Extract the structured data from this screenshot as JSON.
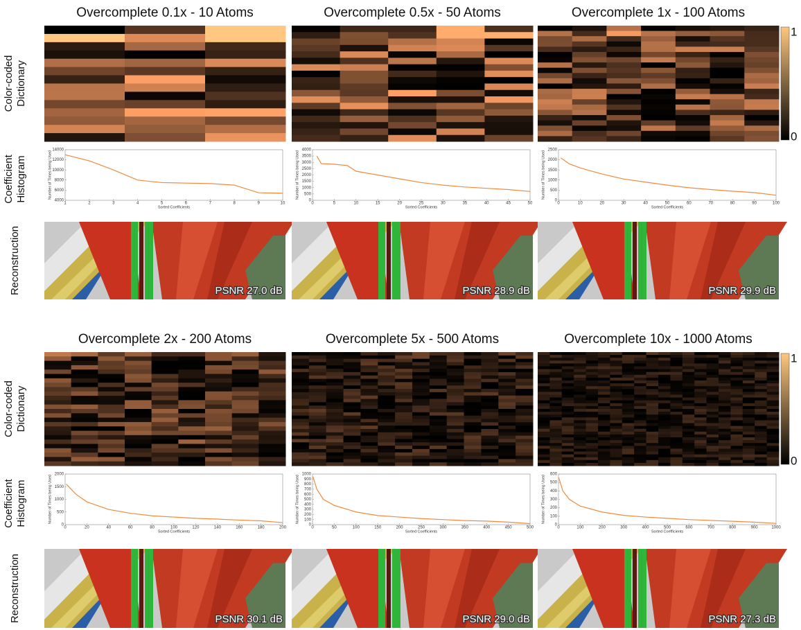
{
  "row_labels": [
    [
      "Color-coded",
      "Dictionary"
    ],
    [
      "Coefficient",
      "Histogram"
    ],
    [
      "Reconstruction"
    ]
  ],
  "colorbar": {
    "ticks": [
      0,
      1
    ]
  },
  "chart_data": [
    {
      "type": "line",
      "title": "Overcomplete 0.1x - 10 Atoms",
      "xlabel": "Sorted Coefficients",
      "ylabel": "Number of Times being Used",
      "annotation": "PSNR 27.0 dB",
      "color": "#f28a3c",
      "x": [
        1,
        2,
        3,
        4,
        5,
        6,
        7,
        8,
        9,
        10
      ],
      "values": [
        13000,
        11800,
        10000,
        8000,
        7500,
        7400,
        7300,
        7000,
        5500,
        5400
      ],
      "xlim": [
        1,
        10
      ],
      "xticks": [
        1,
        2,
        3,
        4,
        5,
        6,
        7,
        8,
        9,
        10
      ],
      "ylim": [
        4000,
        14000
      ],
      "yticks": [
        4000,
        6000,
        8000,
        10000,
        12000,
        14000
      ]
    },
    {
      "type": "line",
      "title": "Overcomplete 0.5x - 50 Atoms",
      "xlabel": "Sorted Coefficients",
      "ylabel": "Number of Times being Used",
      "annotation": "PSNR 28.9 dB",
      "color": "#f28a3c",
      "x": [
        1,
        2,
        5,
        8,
        10,
        15,
        20,
        25,
        30,
        35,
        40,
        45,
        50
      ],
      "values": [
        3500,
        2900,
        2850,
        2750,
        2300,
        2000,
        1700,
        1400,
        1200,
        1050,
        950,
        850,
        700
      ],
      "xlim": [
        0,
        50
      ],
      "xticks": [
        0,
        5,
        10,
        15,
        20,
        25,
        30,
        35,
        40,
        45,
        50
      ],
      "ylim": [
        0,
        4000
      ],
      "yticks": [
        0,
        500,
        1000,
        1500,
        2000,
        2500,
        3000,
        3500,
        4000
      ]
    },
    {
      "type": "line",
      "title": "Overcomplete 1x - 100 Atoms",
      "xlabel": "Sorted Coefficients",
      "ylabel": "Number of Times being Used",
      "annotation": "PSNR 29.9 dB",
      "color": "#f28a3c",
      "x": [
        1,
        5,
        10,
        20,
        30,
        40,
        50,
        60,
        70,
        80,
        90,
        100
      ],
      "values": [
        2100,
        1800,
        1600,
        1300,
        1050,
        900,
        750,
        620,
        530,
        450,
        380,
        250
      ],
      "xlim": [
        0,
        100
      ],
      "xticks": [
        0,
        10,
        20,
        30,
        40,
        50,
        60,
        70,
        80,
        90,
        100
      ],
      "ylim": [
        0,
        2500
      ],
      "yticks": [
        0,
        500,
        1000,
        1500,
        2000,
        2500
      ]
    },
    {
      "type": "line",
      "title": "Overcomplete 2x - 200 Atoms",
      "xlabel": "Sorted Coefficients",
      "ylabel": "Number of Times being Used",
      "annotation": "PSNR 30.1 dB",
      "color": "#f28a3c",
      "x": [
        1,
        10,
        20,
        40,
        60,
        80,
        100,
        120,
        140,
        160,
        180,
        200
      ],
      "values": [
        1600,
        1200,
        900,
        600,
        450,
        350,
        300,
        250,
        220,
        180,
        150,
        80
      ],
      "xlim": [
        0,
        200
      ],
      "xticks": [
        0,
        20,
        40,
        60,
        80,
        100,
        120,
        140,
        160,
        180,
        200
      ],
      "ylim": [
        0,
        2000
      ],
      "yticks": [
        0,
        500,
        1000,
        1500,
        2000
      ]
    },
    {
      "type": "line",
      "title": "Overcomplete 5x - 500 Atoms",
      "xlabel": "Sorted Coefficients",
      "ylabel": "Number of Times being Used",
      "annotation": "PSNR 29.0 dB",
      "color": "#f28a3c",
      "x": [
        1,
        10,
        25,
        50,
        100,
        150,
        200,
        250,
        300,
        350,
        400,
        450,
        500
      ],
      "values": [
        950,
        700,
        500,
        380,
        250,
        180,
        150,
        120,
        100,
        80,
        70,
        50,
        20
      ],
      "xlim": [
        0,
        500
      ],
      "xticks": [
        0,
        50,
        100,
        150,
        200,
        250,
        300,
        350,
        400,
        450,
        500
      ],
      "ylim": [
        0,
        1000
      ],
      "yticks": [
        0,
        100,
        200,
        300,
        400,
        500,
        600,
        700,
        800,
        900,
        1000
      ]
    },
    {
      "type": "line",
      "title": "Overcomplete 10x - 1000 Atoms",
      "xlabel": "Sorted Coefficients",
      "ylabel": "Number of Times being Used",
      "annotation": "PSNR 27.3 dB",
      "color": "#f28a3c",
      "x": [
        1,
        20,
        50,
        100,
        200,
        300,
        400,
        500,
        600,
        700,
        800,
        900,
        1000
      ],
      "values": [
        560,
        400,
        300,
        220,
        150,
        110,
        90,
        75,
        60,
        50,
        40,
        30,
        15
      ],
      "xlim": [
        0,
        1000
      ],
      "xticks": [
        0,
        100,
        200,
        300,
        400,
        500,
        600,
        700,
        800,
        900,
        1000
      ],
      "ylim": [
        0,
        600
      ],
      "yticks": [
        0,
        100,
        200,
        300,
        400,
        500,
        600
      ]
    }
  ]
}
